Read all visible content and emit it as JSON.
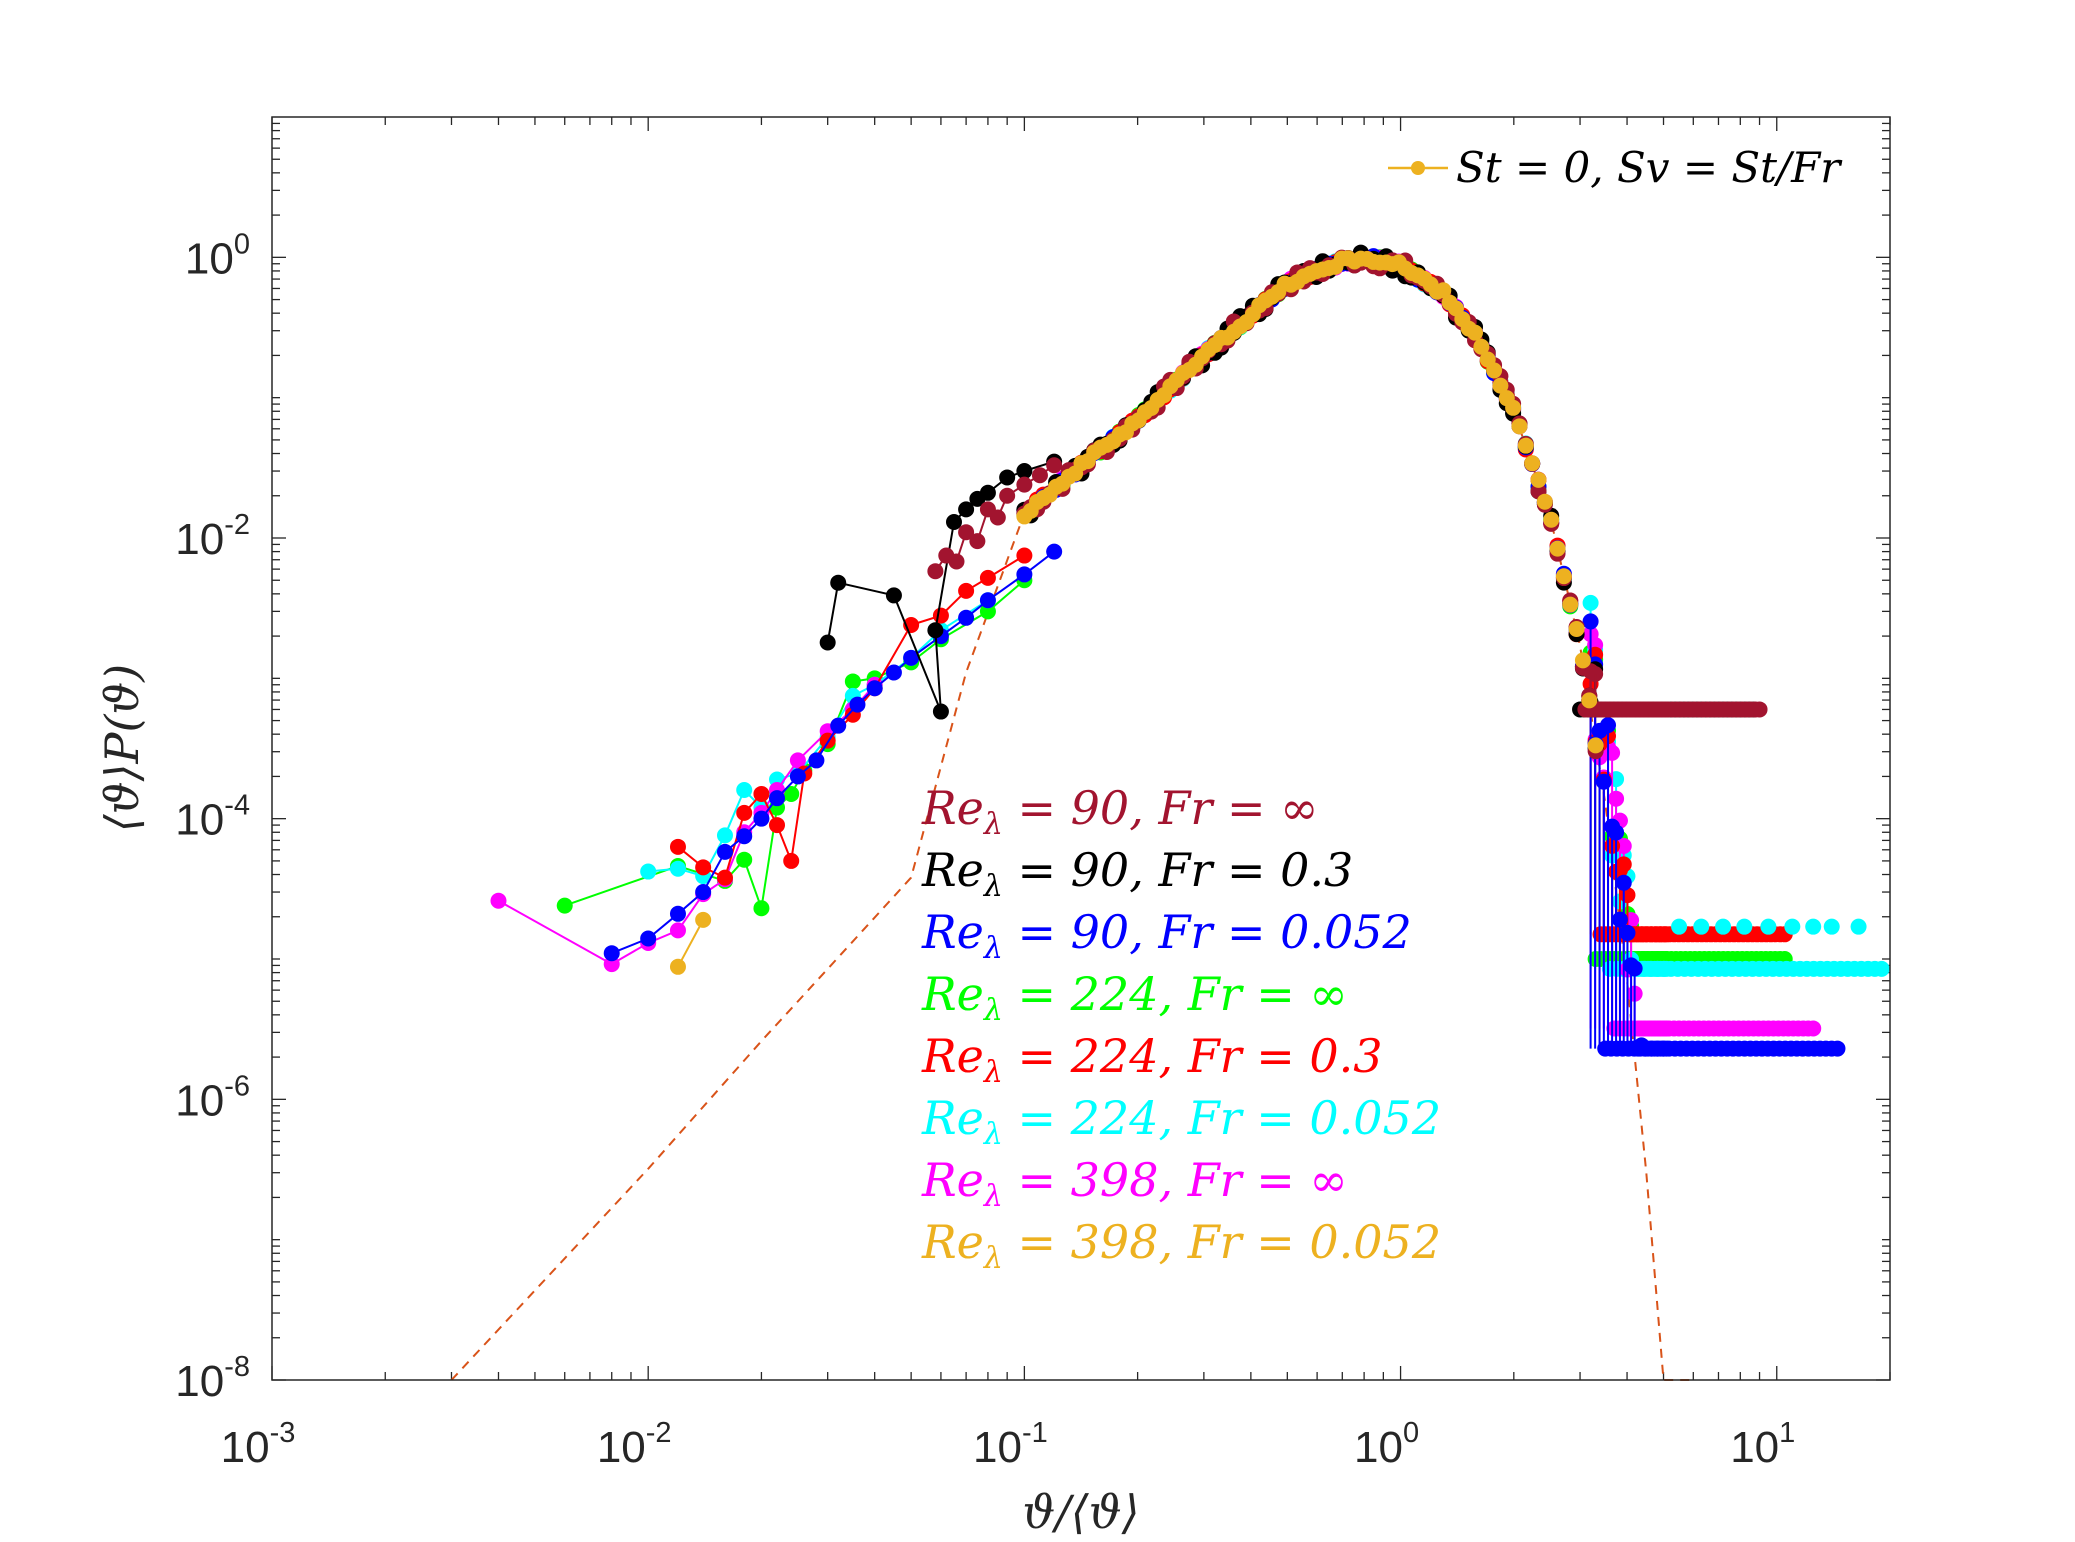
{
  "chart_data": {
    "type": "scatter",
    "xscale": "log",
    "yscale": "log",
    "xlim": [
      0.001,
      20
    ],
    "ylim": [
      1e-08,
      10
    ],
    "xlabel": "ϑ/⟨ϑ⟩",
    "ylabel": "⟨ϑ⟩P(ϑ)",
    "x_ticks": [
      {
        "base": "10",
        "exp": "-3",
        "value": 0.001
      },
      {
        "base": "10",
        "exp": "-2",
        "value": 0.01
      },
      {
        "base": "10",
        "exp": "-1",
        "value": 0.1
      },
      {
        "base": "10",
        "exp": "0",
        "value": 1
      },
      {
        "base": "10",
        "exp": "1",
        "value": 10
      }
    ],
    "y_ticks": [
      {
        "base": "10",
        "exp": "0",
        "value": 1
      },
      {
        "base": "10",
        "exp": "-2",
        "value": 0.01
      },
      {
        "base": "10",
        "exp": "-4",
        "value": 0.0001
      },
      {
        "base": "10",
        "exp": "-6",
        "value": 1e-06
      },
      {
        "base": "10",
        "exp": "-8",
        "value": 1e-08
      }
    ],
    "legend": {
      "label": "St = 0, Sv = St/Fr",
      "color": "#EDB120",
      "placement": "top-right"
    },
    "reference_curve": {
      "style": "dashed",
      "color": "#D95319",
      "points": [
        [
          0.003,
          1e-08
        ],
        [
          0.01,
          3.2e-07
        ],
        [
          0.02,
          2.6e-06
        ],
        [
          0.03,
          8.5e-06
        ],
        [
          0.05,
          3.8e-05
        ],
        [
          0.07,
          0.0011
        ],
        [
          0.1,
          0.015
        ],
        [
          0.2,
          0.07
        ],
        [
          0.3,
          0.2
        ],
        [
          0.5,
          0.65
        ],
        [
          0.7,
          0.93
        ],
        [
          0.8,
          1.0
        ],
        [
          1.0,
          0.88
        ],
        [
          1.3,
          0.55
        ],
        [
          1.6,
          0.27
        ],
        [
          2.0,
          0.08
        ],
        [
          2.5,
          0.014
        ],
        [
          3.0,
          0.0017
        ],
        [
          3.5,
          0.00013
        ],
        [
          4.0,
          7e-06
        ],
        [
          4.5,
          3e-07
        ],
        [
          5.0,
          1e-08
        ],
        [
          6.0,
          1e-08
        ]
      ]
    },
    "series": [
      {
        "name": "Re_λ = 90, Fr = ∞",
        "color": "#A2142F",
        "left": [
          [
            0.058,
            0.0058
          ],
          [
            0.062,
            0.0075
          ],
          [
            0.066,
            0.0068
          ],
          [
            0.07,
            0.011
          ],
          [
            0.075,
            0.0095
          ],
          [
            0.08,
            0.016
          ],
          [
            0.085,
            0.014
          ],
          [
            0.09,
            0.02
          ],
          [
            0.1,
            0.024
          ],
          [
            0.11,
            0.028
          ],
          [
            0.12,
            0.033
          ]
        ],
        "plateau": 0.0006,
        "plateau_xmin": 3.1,
        "plateau_xmax": 9.0
      },
      {
        "name": "Re_λ = 90, Fr = 0.3",
        "color": "#000000",
        "left": [
          [
            0.03,
            0.0018
          ],
          [
            0.032,
            0.0048
          ],
          [
            0.045,
            0.0039
          ],
          [
            0.06,
            0.00058
          ],
          [
            0.058,
            0.0022
          ],
          [
            0.065,
            0.013
          ],
          [
            0.07,
            0.016
          ],
          [
            0.075,
            0.019
          ],
          [
            0.08,
            0.021
          ],
          [
            0.09,
            0.027
          ],
          [
            0.1,
            0.03
          ],
          [
            0.12,
            0.035
          ]
        ],
        "plateau": 0.0006,
        "plateau_xmin": 3.0,
        "plateau_xmax": 8.7
      },
      {
        "name": "Re_λ = 90, Fr = 0.052",
        "color": "#0000FF",
        "left": [
          [
            0.008,
            1.1e-05
          ],
          [
            0.01,
            1.4e-05
          ],
          [
            0.012,
            2.1e-05
          ],
          [
            0.014,
            3e-05
          ],
          [
            0.016,
            5.8e-05
          ],
          [
            0.018,
            7.5e-05
          ],
          [
            0.02,
            0.0001
          ],
          [
            0.022,
            0.00014
          ],
          [
            0.025,
            0.0002
          ],
          [
            0.028,
            0.00026
          ],
          [
            0.032,
            0.00046
          ],
          [
            0.036,
            0.00065
          ],
          [
            0.04,
            0.00085
          ],
          [
            0.045,
            0.0011
          ],
          [
            0.05,
            0.0014
          ],
          [
            0.06,
            0.002
          ],
          [
            0.07,
            0.0027
          ],
          [
            0.08,
            0.0036
          ],
          [
            0.1,
            0.0055
          ],
          [
            0.12,
            0.008
          ]
        ],
        "plateau": 2.3e-06,
        "plateau_xmin": 3.5,
        "plateau_xmax": 14.5
      },
      {
        "name": "Re_λ = 224, Fr = ∞",
        "color": "#00FF00",
        "left": [
          [
            0.006,
            2.4e-05
          ],
          [
            0.012,
            4.6e-05
          ],
          [
            0.016,
            3.6e-05
          ],
          [
            0.018,
            5.1e-05
          ],
          [
            0.02,
            2.3e-05
          ],
          [
            0.022,
            0.00012
          ],
          [
            0.024,
            0.00015
          ],
          [
            0.026,
            0.00022
          ],
          [
            0.03,
            0.00034
          ],
          [
            0.035,
            0.00095
          ],
          [
            0.04,
            0.001
          ],
          [
            0.05,
            0.0013
          ],
          [
            0.06,
            0.0019
          ],
          [
            0.08,
            0.003
          ],
          [
            0.1,
            0.005
          ]
        ],
        "plateau": 1e-05,
        "plateau_xmin": 3.3,
        "plateau_xmax": 10.5
      },
      {
        "name": "Re_λ = 224, Fr = 0.3",
        "color": "#FF0000",
        "left": [
          [
            0.012,
            6.3e-05
          ],
          [
            0.014,
            4.5e-05
          ],
          [
            0.016,
            3.8e-05
          ],
          [
            0.018,
            0.00011
          ],
          [
            0.02,
            0.00015
          ],
          [
            0.022,
            9e-05
          ],
          [
            0.024,
            5e-05
          ],
          [
            0.026,
            0.00021
          ],
          [
            0.03,
            0.00036
          ],
          [
            0.035,
            0.00055
          ],
          [
            0.04,
            0.00085
          ],
          [
            0.05,
            0.0024
          ],
          [
            0.06,
            0.0028
          ],
          [
            0.07,
            0.0042
          ],
          [
            0.08,
            0.0052
          ],
          [
            0.1,
            0.0075
          ]
        ],
        "plateau": 1.5e-05,
        "plateau_xmin": 3.4,
        "plateau_xmax": 10.5
      },
      {
        "name": "Re_λ = 224, Fr = 0.052",
        "color": "#00FFFF",
        "left": [
          [
            0.01,
            4.2e-05
          ],
          [
            0.012,
            4.4e-05
          ],
          [
            0.014,
            3.9e-05
          ],
          [
            0.016,
            7.6e-05
          ],
          [
            0.018,
            0.00016
          ],
          [
            0.02,
            0.00012
          ],
          [
            0.022,
            0.00019
          ],
          [
            0.025,
            0.00021
          ],
          [
            0.03,
            0.00038
          ],
          [
            0.035,
            0.00075
          ],
          [
            0.04,
            0.0009
          ],
          [
            0.05,
            0.0014
          ],
          [
            0.06,
            0.0022
          ],
          [
            0.08,
            0.0036
          ]
        ],
        "plateau": 8.5e-06,
        "plateau_xmin": 3.6,
        "plateau_xmax": 19.0
      },
      {
        "name": "Re_λ = 398, Fr = ∞",
        "color": "#FF00FF",
        "left": [
          [
            0.004,
            2.6e-05
          ],
          [
            0.008,
            9.2e-06
          ],
          [
            0.01,
            1.3e-05
          ],
          [
            0.012,
            1.6e-05
          ],
          [
            0.014,
            2.9e-05
          ],
          [
            0.016,
            3.7e-05
          ],
          [
            0.018,
            8e-05
          ],
          [
            0.02,
            0.00011
          ],
          [
            0.022,
            0.00016
          ],
          [
            0.025,
            0.00026
          ],
          [
            0.03,
            0.00042
          ],
          [
            0.035,
            0.0006
          ],
          [
            0.04,
            0.0009
          ]
        ],
        "plateau": 3.2e-06,
        "plateau_xmin": 3.7,
        "plateau_xmax": 12.5
      },
      {
        "name": "Re_λ = 398, Fr = 0.052",
        "color": "#EDB120",
        "left": [
          [
            0.012,
            8.8e-06
          ],
          [
            0.014,
            1.9e-05
          ]
        ],
        "plateau": null,
        "plateau_xmin": null,
        "plateau_xmax": null
      }
    ],
    "annotations": [
      {
        "prefix": "Re",
        "sub": "λ",
        "rest": " = 90, Fr = ∞",
        "color": "#A2142F"
      },
      {
        "prefix": "Re",
        "sub": "λ",
        "rest": " = 90, Fr = 0.3",
        "color": "#000000"
      },
      {
        "prefix": "Re",
        "sub": "λ",
        "rest": " = 90, Fr = 0.052",
        "color": "#0000FF"
      },
      {
        "prefix": "Re",
        "sub": "λ",
        "rest": " = 224, Fr = ∞",
        "color": "#00FF00"
      },
      {
        "prefix": "Re",
        "sub": "λ",
        "rest": " = 224, Fr = 0.3",
        "color": "#FF0000"
      },
      {
        "prefix": "Re",
        "sub": "λ",
        "rest": " = 224, Fr = 0.052",
        "color": "#00FFFF"
      },
      {
        "prefix": "Re",
        "sub": "λ",
        "rest": " = 398, Fr = ∞",
        "color": "#FF00FF"
      },
      {
        "prefix": "Re",
        "sub": "λ",
        "rest": " = 398, Fr = 0.052",
        "color": "#EDB120"
      }
    ]
  }
}
